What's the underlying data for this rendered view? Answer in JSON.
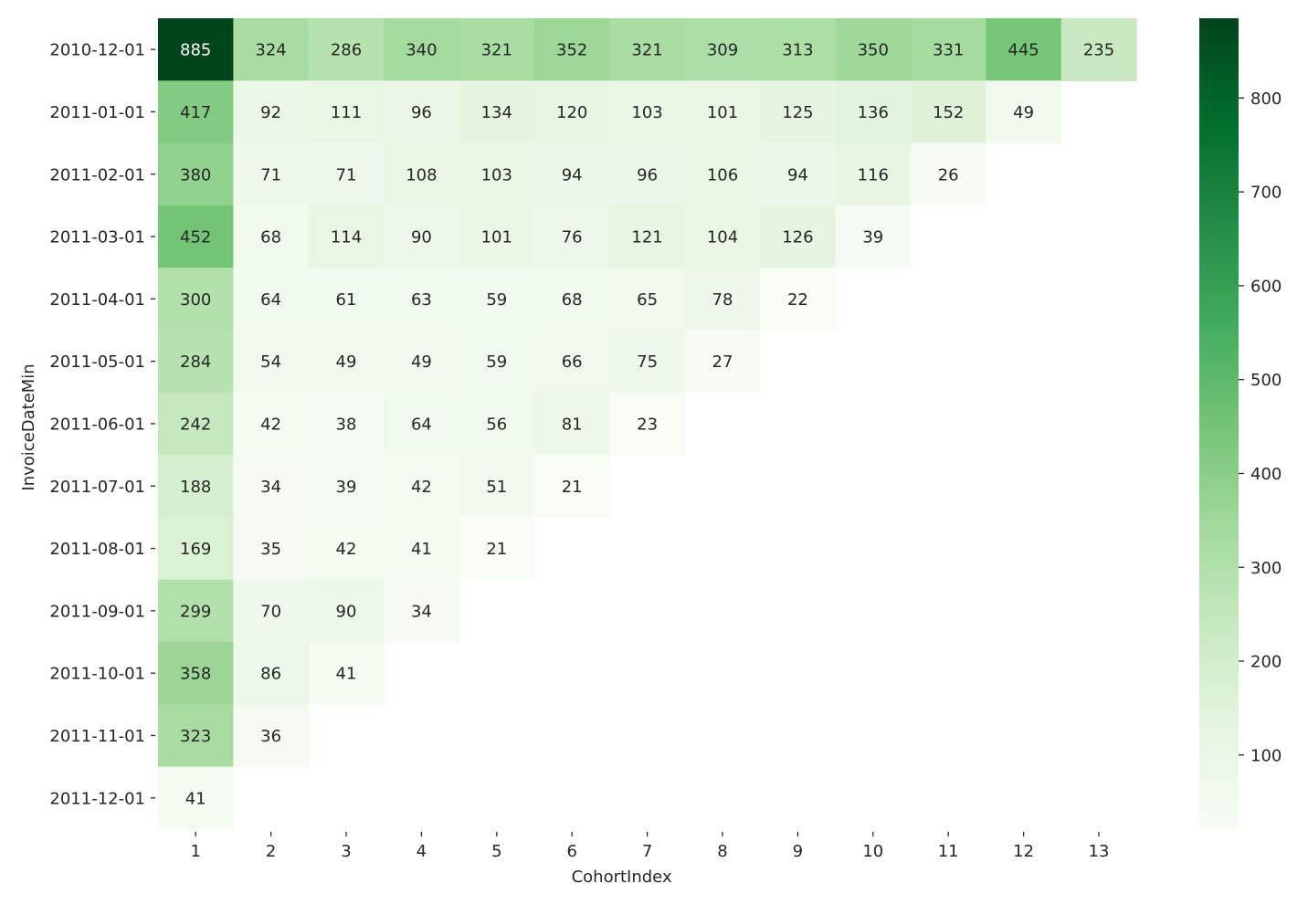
{
  "chart_data": {
    "type": "heatmap",
    "title": "",
    "xlabel": "CohortIndex",
    "ylabel": "InvoiceDateMin",
    "x_categories": [
      "1",
      "2",
      "3",
      "4",
      "5",
      "6",
      "7",
      "8",
      "9",
      "10",
      "11",
      "12",
      "13"
    ],
    "y_categories": [
      "2010-12-01",
      "2011-01-01",
      "2011-02-01",
      "2011-03-01",
      "2011-04-01",
      "2011-05-01",
      "2011-06-01",
      "2011-07-01",
      "2011-08-01",
      "2011-09-01",
      "2011-10-01",
      "2011-11-01",
      "2011-12-01"
    ],
    "values": [
      [
        885,
        324,
        286,
        340,
        321,
        352,
        321,
        309,
        313,
        350,
        331,
        445,
        235
      ],
      [
        417,
        92,
        111,
        96,
        134,
        120,
        103,
        101,
        125,
        136,
        152,
        49,
        null
      ],
      [
        380,
        71,
        71,
        108,
        103,
        94,
        96,
        106,
        94,
        116,
        26,
        null,
        null
      ],
      [
        452,
        68,
        114,
        90,
        101,
        76,
        121,
        104,
        126,
        39,
        null,
        null,
        null
      ],
      [
        300,
        64,
        61,
        63,
        59,
        68,
        65,
        78,
        22,
        null,
        null,
        null,
        null
      ],
      [
        284,
        54,
        49,
        49,
        59,
        66,
        75,
        27,
        null,
        null,
        null,
        null,
        null
      ],
      [
        242,
        42,
        38,
        64,
        56,
        81,
        23,
        null,
        null,
        null,
        null,
        null,
        null
      ],
      [
        188,
        34,
        39,
        42,
        51,
        21,
        null,
        null,
        null,
        null,
        null,
        null,
        null
      ],
      [
        169,
        35,
        42,
        41,
        21,
        null,
        null,
        null,
        null,
        null,
        null,
        null,
        null
      ],
      [
        299,
        70,
        90,
        34,
        null,
        null,
        null,
        null,
        null,
        null,
        null,
        null,
        null
      ],
      [
        358,
        86,
        41,
        null,
        null,
        null,
        null,
        null,
        null,
        null,
        null,
        null,
        null
      ],
      [
        323,
        36,
        null,
        null,
        null,
        null,
        null,
        null,
        null,
        null,
        null,
        null,
        null
      ],
      [
        41,
        null,
        null,
        null,
        null,
        null,
        null,
        null,
        null,
        null,
        null,
        null,
        null
      ]
    ],
    "colorscale": "Greens",
    "vmin": 21,
    "vmax": 885,
    "colorbar_ticks": [
      100,
      200,
      300,
      400,
      500,
      600,
      700,
      800
    ],
    "colorbar_colors": [
      "#f7fcf5",
      "#e5f5e0",
      "#c7e9c0",
      "#a1d99b",
      "#74c476",
      "#41ab5d",
      "#238b45",
      "#006d2c",
      "#00441b"
    ],
    "annotations": true,
    "grid": false,
    "legend": "colorbar-right"
  }
}
